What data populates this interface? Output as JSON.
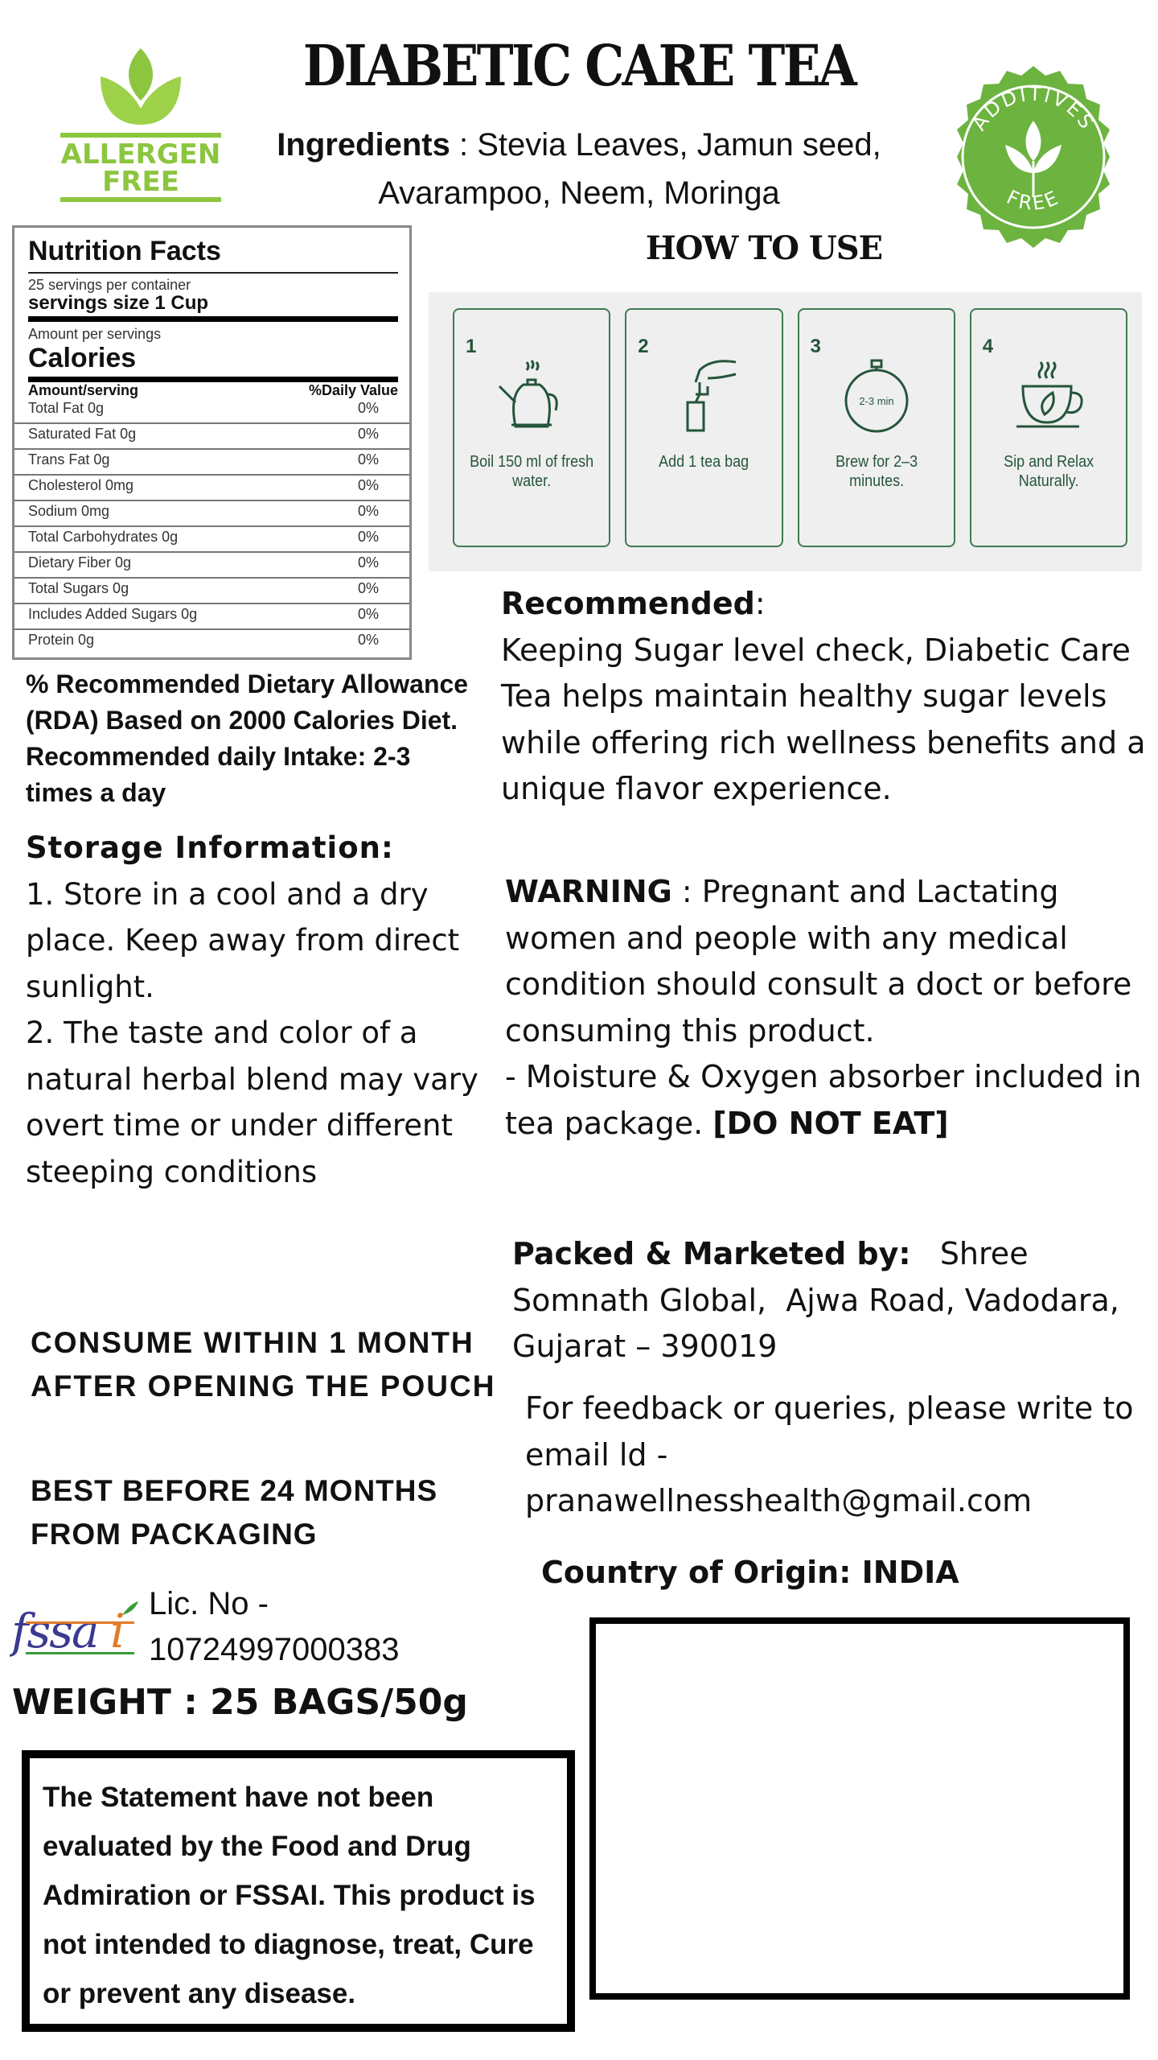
{
  "title": "DIABETIC CARE TEA",
  "logos": {
    "allergen_free": "ALLERGEN FREE",
    "allergen_line1": "ALLERGEN",
    "allergen_line2": "FREE",
    "additives_free_top": "ADDITIVES",
    "additives_free_bottom": "FREE",
    "fssai": "fssai"
  },
  "colors": {
    "brand_green": "#8cc63f",
    "badge_green": "#6cb33f",
    "step_green": "#24553a"
  },
  "ingredients": {
    "label": "Ingredients",
    "text": " : Stevia Leaves, Jamun seed, Avarampoo, Neem, Moringa"
  },
  "nutrition": {
    "title": "Nutrition Facts",
    "servings_per_container": "25  servings per container",
    "serving_size": "servings size 1 Cup",
    "amount_per": "Amount per servings",
    "calories": "Calories",
    "col_amount": "Amount/serving",
    "col_dv": "%Daily Value",
    "rows": [
      {
        "name": "Total Fat 0g",
        "dv": "0%"
      },
      {
        "name": "Saturated Fat 0g",
        "dv": "0%"
      },
      {
        "name": "Trans Fat 0g",
        "dv": "0%"
      },
      {
        "name": "Cholesterol 0mg",
        "dv": "0%"
      },
      {
        "name": "Sodium 0mg",
        "dv": "0%"
      },
      {
        "name": "Total Carbohydrates 0g",
        "dv": "0%"
      },
      {
        "name": "Dietary Fiber 0g",
        "dv": "0%"
      },
      {
        "name": "Total Sugars 0g",
        "dv": "0%"
      },
      {
        "name": "Includes Added Sugars 0g",
        "dv": "0%"
      },
      {
        "name": "Protein 0g",
        "dv": "0%"
      }
    ]
  },
  "how_to_use": {
    "title": "HOW TO USE",
    "steps": [
      {
        "num": "1",
        "text": "Boil 150 ml of fresh water.",
        "icon": "kettle-icon"
      },
      {
        "num": "2",
        "text": "Add 1 tea bag",
        "icon": "tea-bag-icon"
      },
      {
        "num": "3",
        "text": "Brew for 2–3 minutes.",
        "icon": "stopwatch-icon",
        "timer_label": "2-3 min"
      },
      {
        "num": "4",
        "text": "Sip and Relax Naturally.",
        "icon": "tea-cup-icon"
      }
    ]
  },
  "recommended": {
    "label": "Recommended",
    "text": " Keeping Sugar level check, Diabetic Care Tea helps maintain healthy sugar levels while offering rich wellness benefits and a unique flavor experience."
  },
  "rda": "% Recommended Dietary Allowance (RDA) Based on 2000 Calories Diet. Recommended daily Intake: 2-3 times a day",
  "storage": {
    "label": "Storage Information:",
    "item1": " 1. Store in a cool and a dry place. Keep away from direct sunlight.",
    "item2": "2. The taste and color of a natural herbal blend may vary overt time or under different steeping conditions"
  },
  "warning": {
    "label": "WARNING",
    "text": " : Pregnant and Lactating women and people with any medical condition should consult a doct or before consuming this product.",
    "absorber": "- Moisture & Oxygen absorber included in tea package. ",
    "do_not_eat": "[DO NOT EAT]"
  },
  "packed": {
    "label": "Packed & Marketed by:",
    "text": "   Shree Somnath Global,  Ajwa Road, Vadodara,  Gujarat – 390019"
  },
  "feedback": "For feedback or queries, please write to email ld - pranawellnesshealth@gmail.com",
  "consume": "CONSUME WITHIN 1 MONTH AFTER OPENING THE POUCH",
  "best_before": "BEST BEFORE 24 MONTHS FROM PACKAGING",
  "country": "Country of Origin: INDIA",
  "license": {
    "line1": "Lic. No -",
    "line2": "10724997000383"
  },
  "weight": "WEIGHT : 25 BAGS/50g",
  "statement": "The Statement have not been evaluated by the Food and Drug Admiration or FSSAI. This product is not intended to diagnose, treat, Cure or prevent any disease."
}
